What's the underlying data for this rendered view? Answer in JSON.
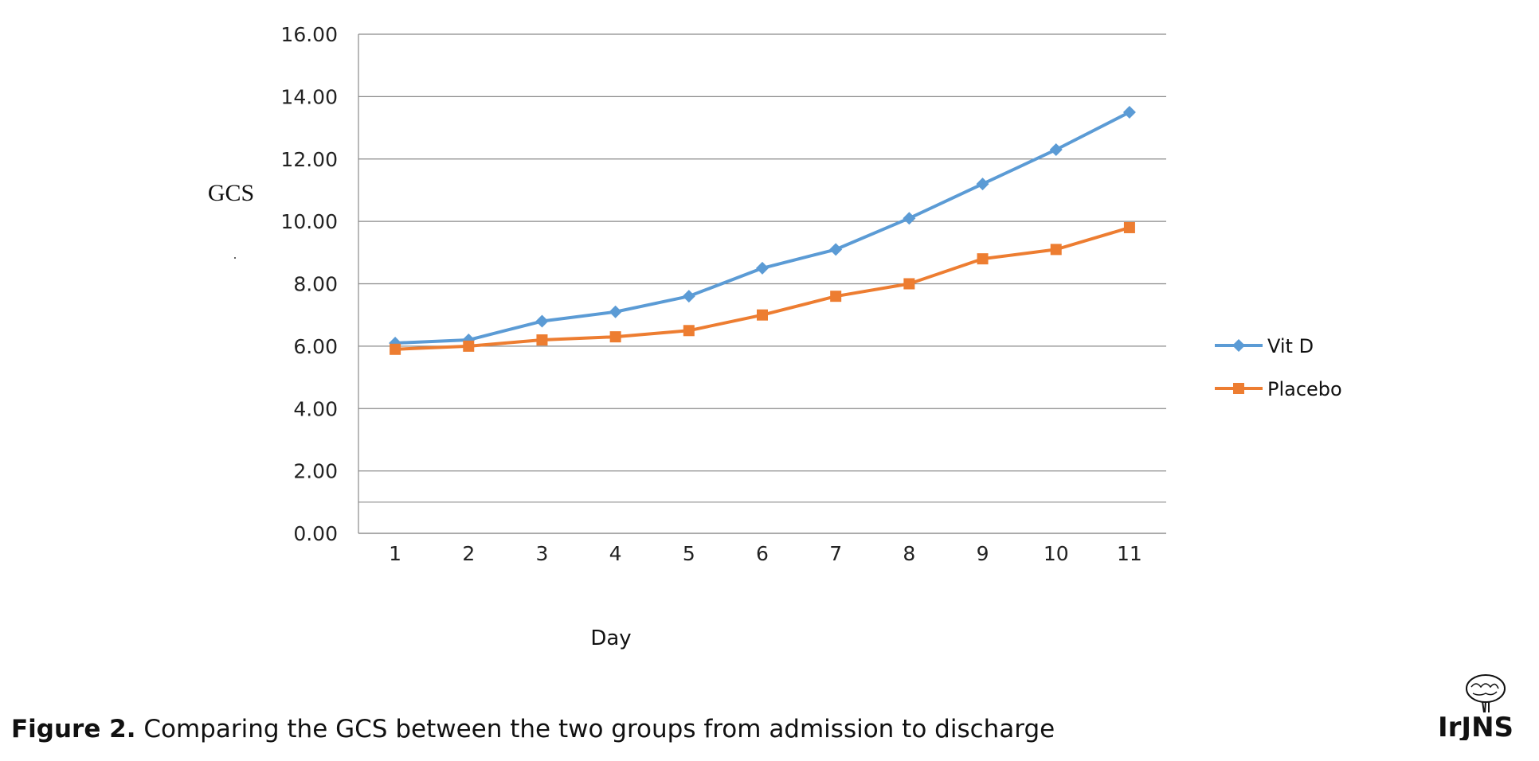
{
  "chart_data": {
    "type": "line",
    "title": "",
    "xlabel": "Day",
    "ylabel": "GCS",
    "categories": [
      "1",
      "2",
      "3",
      "4",
      "5",
      "6",
      "7",
      "8",
      "9",
      "10",
      "11"
    ],
    "yticks": [
      "0.00",
      "2.00",
      "4.00",
      "6.00",
      "8.00",
      "10.00",
      "12.00",
      "14.00",
      "16.00"
    ],
    "ylim": [
      0,
      16
    ],
    "grid": true,
    "legend_position": "right",
    "series": [
      {
        "name": "Vit D",
        "color": "#5B9BD5",
        "marker": "diamond",
        "values": [
          6.1,
          6.2,
          6.8,
          7.1,
          7.6,
          8.5,
          9.1,
          10.1,
          11.2,
          12.3,
          13.5
        ]
      },
      {
        "name": "Placebo",
        "color": "#ED7D31",
        "marker": "square",
        "values": [
          5.9,
          6.0,
          6.2,
          6.3,
          6.5,
          7.0,
          7.6,
          8.0,
          8.8,
          9.1,
          9.8
        ]
      }
    ]
  },
  "caption": {
    "label": "Figure 2.",
    "text": " Comparing the GCS between the two groups from admission to discharge"
  },
  "logo": {
    "text": "IrJNS",
    "icon": "brain-logo-icon"
  }
}
